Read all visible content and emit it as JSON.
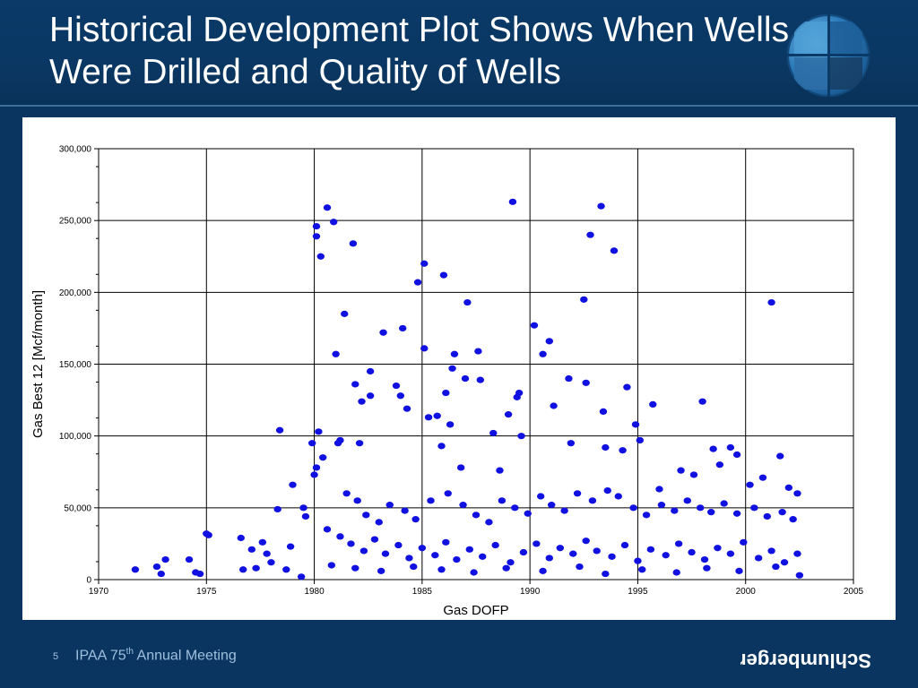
{
  "slide": {
    "title": "Historical Development Plot Shows When Wells Were Drilled and Quality of Wells",
    "page_number": "5",
    "footer_prefix": "IPAA 75",
    "footer_sup": "th",
    "footer_suffix": " Annual Meeting",
    "logo_text": "Schlumberger",
    "colors": {
      "background": "#0a3560",
      "title": "#ffffff",
      "footer": "#9fc0de",
      "points": "#1010e0"
    }
  },
  "chart_data": {
    "type": "scatter",
    "title": "",
    "xlabel": "Gas DOFP",
    "ylabel": "Gas Best 12 [Mcf/month]",
    "xlim": [
      1970,
      2005
    ],
    "ylim": [
      0,
      300000
    ],
    "xticks": [
      "1970",
      "1975",
      "1980",
      "1985",
      "1990",
      "1995",
      "2000",
      "2005"
    ],
    "yticks": [
      "0",
      "50,000",
      "100,000",
      "150,000",
      "200,000",
      "250,000",
      "300,000"
    ],
    "grid": true,
    "legend": "none",
    "point_color": "#1010e0",
    "series": [
      {
        "points": [
          [
            1971.7,
            7000
          ],
          [
            1972.7,
            9000
          ],
          [
            1972.9,
            4000
          ],
          [
            1973.1,
            14000
          ],
          [
            1974.2,
            14000
          ],
          [
            1974.5,
            5000
          ],
          [
            1974.7,
            4000
          ],
          [
            1975.0,
            32000
          ],
          [
            1975.1,
            31000
          ],
          [
            1976.6,
            29000
          ],
          [
            1976.7,
            7000
          ],
          [
            1977.1,
            21000
          ],
          [
            1977.3,
            8000
          ],
          [
            1977.6,
            26000
          ],
          [
            1977.8,
            18000
          ],
          [
            1978.0,
            12000
          ],
          [
            1978.3,
            49000
          ],
          [
            1978.4,
            104000
          ],
          [
            1978.7,
            7000
          ],
          [
            1978.9,
            23000
          ],
          [
            1979.0,
            66000
          ],
          [
            1979.4,
            2000
          ],
          [
            1979.5,
            50000
          ],
          [
            1979.6,
            44000
          ],
          [
            1979.9,
            95000
          ],
          [
            1980.0,
            73000
          ],
          [
            1980.1,
            78000
          ],
          [
            1980.1,
            246000
          ],
          [
            1980.1,
            239000
          ],
          [
            1980.2,
            103000
          ],
          [
            1980.3,
            225000
          ],
          [
            1980.4,
            85000
          ],
          [
            1980.6,
            35000
          ],
          [
            1980.6,
            259000
          ],
          [
            1980.9,
            249000
          ],
          [
            1981.0,
            157000
          ],
          [
            1981.1,
            95000
          ],
          [
            1981.2,
            97000
          ],
          [
            1981.4,
            185000
          ],
          [
            1981.8,
            234000
          ],
          [
            1981.9,
            136000
          ],
          [
            1982.1,
            95000
          ],
          [
            1982.2,
            124000
          ],
          [
            1982.6,
            145000
          ],
          [
            1982.6,
            128000
          ],
          [
            1983.2,
            172000
          ],
          [
            1983.8,
            135000
          ],
          [
            1984.0,
            128000
          ],
          [
            1984.1,
            175000
          ],
          [
            1984.3,
            119000
          ],
          [
            1984.8,
            207000
          ],
          [
            1985.1,
            220000
          ],
          [
            1985.1,
            161000
          ],
          [
            1985.3,
            113000
          ],
          [
            1985.7,
            114000
          ],
          [
            1985.9,
            93000
          ],
          [
            1986.0,
            212000
          ],
          [
            1986.1,
            130000
          ],
          [
            1986.3,
            108000
          ],
          [
            1986.4,
            147000
          ],
          [
            1986.5,
            157000
          ],
          [
            1986.8,
            78000
          ],
          [
            1987.1,
            193000
          ],
          [
            1987.0,
            140000
          ],
          [
            1987.6,
            159000
          ],
          [
            1987.7,
            139000
          ],
          [
            1988.3,
            102000
          ],
          [
            1988.6,
            76000
          ],
          [
            1989.0,
            115000
          ],
          [
            1989.2,
            263000
          ],
          [
            1989.4,
            127000
          ],
          [
            1989.5,
            130000
          ],
          [
            1989.6,
            100000
          ],
          [
            1990.2,
            177000
          ],
          [
            1990.6,
            157000
          ],
          [
            1990.9,
            166000
          ],
          [
            1991.1,
            121000
          ],
          [
            1991.8,
            140000
          ],
          [
            1991.9,
            95000
          ],
          [
            1992.5,
            195000
          ],
          [
            1992.6,
            137000
          ],
          [
            1992.8,
            240000
          ],
          [
            1993.3,
            260000
          ],
          [
            1993.4,
            117000
          ],
          [
            1993.5,
            92000
          ],
          [
            1993.9,
            229000
          ],
          [
            1994.3,
            90000
          ],
          [
            1994.5,
            134000
          ],
          [
            1994.9,
            108000
          ],
          [
            1995.1,
            97000
          ],
          [
            1995.7,
            122000
          ],
          [
            1996.0,
            63000
          ],
          [
            1997.0,
            76000
          ],
          [
            1997.6,
            73000
          ],
          [
            1998.0,
            124000
          ],
          [
            1998.5,
            91000
          ],
          [
            1998.8,
            80000
          ],
          [
            1999.3,
            92000
          ],
          [
            1999.6,
            87000
          ],
          [
            2000.2,
            66000
          ],
          [
            2000.8,
            71000
          ],
          [
            2001.2,
            193000
          ],
          [
            2001.6,
            86000
          ],
          [
            2002.0,
            64000
          ],
          [
            2002.4,
            60000
          ],
          [
            1981.5,
            60000
          ],
          [
            1982.0,
            55000
          ],
          [
            1982.4,
            45000
          ],
          [
            1983.0,
            40000
          ],
          [
            1983.5,
            52000
          ],
          [
            1984.2,
            48000
          ],
          [
            1984.7,
            42000
          ],
          [
            1985.4,
            55000
          ],
          [
            1986.2,
            60000
          ],
          [
            1986.9,
            52000
          ],
          [
            1987.5,
            45000
          ],
          [
            1988.1,
            40000
          ],
          [
            1988.7,
            55000
          ],
          [
            1989.3,
            50000
          ],
          [
            1989.9,
            46000
          ],
          [
            1990.5,
            58000
          ],
          [
            1991.0,
            52000
          ],
          [
            1991.6,
            48000
          ],
          [
            1992.2,
            60000
          ],
          [
            1992.9,
            55000
          ],
          [
            1993.6,
            62000
          ],
          [
            1994.1,
            58000
          ],
          [
            1994.8,
            50000
          ],
          [
            1995.4,
            45000
          ],
          [
            1996.1,
            52000
          ],
          [
            1996.7,
            48000
          ],
          [
            1997.3,
            55000
          ],
          [
            1997.9,
            50000
          ],
          [
            1998.4,
            47000
          ],
          [
            1999.0,
            53000
          ],
          [
            1999.6,
            46000
          ],
          [
            2000.4,
            50000
          ],
          [
            2001.0,
            44000
          ],
          [
            2001.7,
            47000
          ],
          [
            2002.2,
            42000
          ],
          [
            1981.2,
            30000
          ],
          [
            1981.7,
            25000
          ],
          [
            1982.3,
            20000
          ],
          [
            1982.8,
            28000
          ],
          [
            1983.3,
            18000
          ],
          [
            1983.9,
            24000
          ],
          [
            1984.4,
            15000
          ],
          [
            1985.0,
            22000
          ],
          [
            1985.6,
            17000
          ],
          [
            1986.1,
            26000
          ],
          [
            1986.6,
            14000
          ],
          [
            1987.2,
            21000
          ],
          [
            1987.8,
            16000
          ],
          [
            1988.4,
            24000
          ],
          [
            1989.1,
            12000
          ],
          [
            1989.7,
            19000
          ],
          [
            1990.3,
            25000
          ],
          [
            1990.9,
            15000
          ],
          [
            1991.4,
            22000
          ],
          [
            1992.0,
            18000
          ],
          [
            1992.6,
            27000
          ],
          [
            1993.1,
            20000
          ],
          [
            1993.8,
            16000
          ],
          [
            1994.4,
            24000
          ],
          [
            1995.0,
            13000
          ],
          [
            1995.6,
            21000
          ],
          [
            1996.3,
            17000
          ],
          [
            1996.9,
            25000
          ],
          [
            1997.5,
            19000
          ],
          [
            1998.1,
            14000
          ],
          [
            1998.7,
            22000
          ],
          [
            1999.3,
            18000
          ],
          [
            1999.9,
            26000
          ],
          [
            2000.6,
            15000
          ],
          [
            2001.2,
            20000
          ],
          [
            2001.8,
            12000
          ],
          [
            2002.4,
            18000
          ],
          [
            1980.8,
            10000
          ],
          [
            1981.9,
            8000
          ],
          [
            1983.1,
            6000
          ],
          [
            1984.6,
            9000
          ],
          [
            1985.9,
            7000
          ],
          [
            1987.4,
            5000
          ],
          [
            1988.9,
            8000
          ],
          [
            1990.6,
            6000
          ],
          [
            1992.3,
            9000
          ],
          [
            1993.5,
            4000
          ],
          [
            1995.2,
            7000
          ],
          [
            1996.8,
            5000
          ],
          [
            1998.2,
            8000
          ],
          [
            1999.7,
            6000
          ],
          [
            2001.4,
            9000
          ],
          [
            2002.5,
            3000
          ]
        ]
      }
    ]
  }
}
